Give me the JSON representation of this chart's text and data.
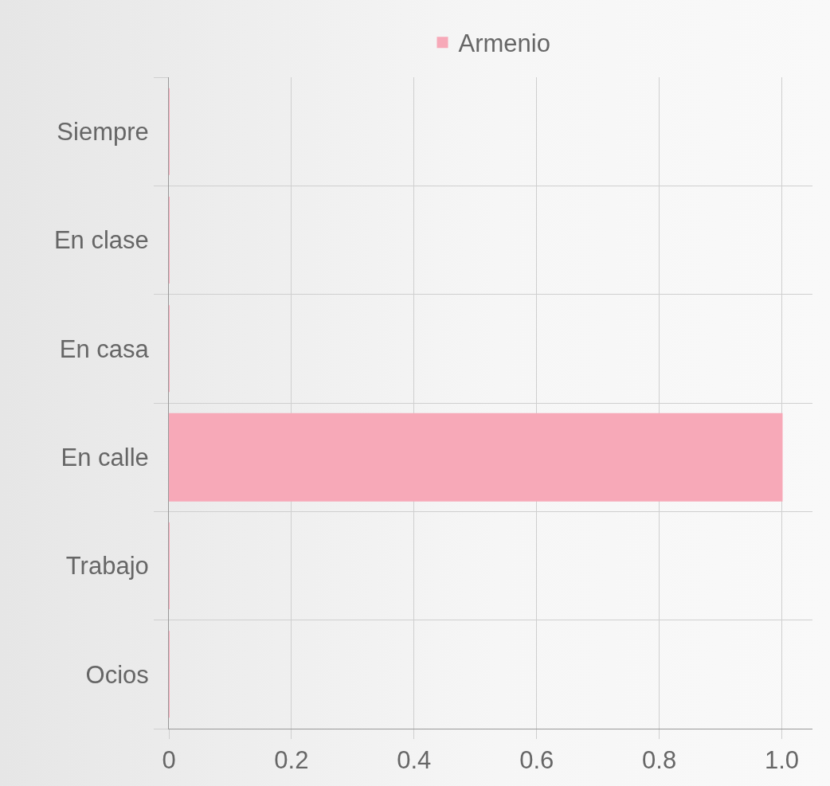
{
  "chart_data": {
    "type": "bar",
    "orientation": "horizontal",
    "categories": [
      "Siempre",
      "En clase",
      "En casa",
      "En calle",
      "Trabajo",
      "Ocios"
    ],
    "series": [
      {
        "name": "Armenio",
        "color": "#f7a9b8",
        "values": [
          0,
          0,
          0,
          1,
          0,
          0
        ]
      }
    ],
    "xlim": [
      0,
      1.05
    ],
    "xticks": [
      0,
      0.2,
      0.4,
      0.6,
      0.8,
      {
        "value": 1,
        "label": "1.0"
      }
    ],
    "grid": true,
    "legend": "top"
  }
}
